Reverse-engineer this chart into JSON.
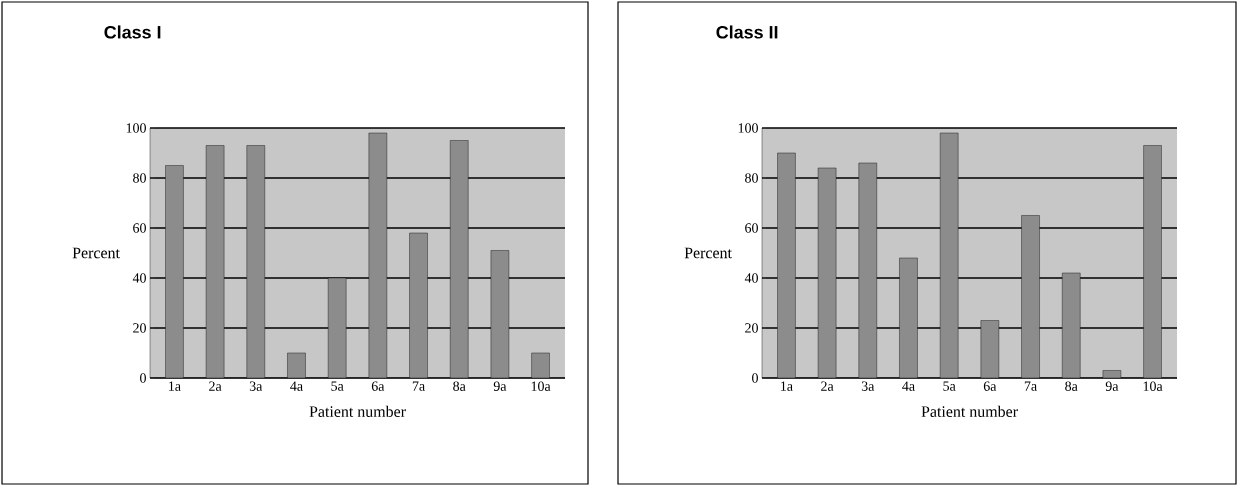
{
  "chart_data": [
    {
      "type": "bar",
      "title": "Class I",
      "xlabel": "Patient number",
      "ylabel": "Percent",
      "categories": [
        "1a",
        "2a",
        "3a",
        "4a",
        "5a",
        "6a",
        "7a",
        "8a",
        "9a",
        "10a"
      ],
      "values": [
        85,
        93,
        93,
        10,
        40,
        98,
        58,
        95,
        51,
        10
      ],
      "color": "#8c8c8c",
      "ylim": [
        0,
        100
      ],
      "yticks": [
        0,
        20,
        40,
        60,
        80,
        100
      ],
      "grid": "y"
    },
    {
      "type": "bar",
      "title": "Class II",
      "xlabel": "Patient number",
      "ylabel": "Percent",
      "categories": [
        "1a",
        "2a",
        "3a",
        "4a",
        "5a",
        "6a",
        "7a",
        "8a",
        "9a",
        "10a"
      ],
      "values": [
        90,
        84,
        86,
        48,
        98,
        23,
        65,
        42,
        3,
        93
      ],
      "color": "#8c8c8c",
      "ylim": [
        0,
        100
      ],
      "yticks": [
        0,
        20,
        40,
        60,
        80,
        100
      ],
      "grid": "y"
    }
  ]
}
